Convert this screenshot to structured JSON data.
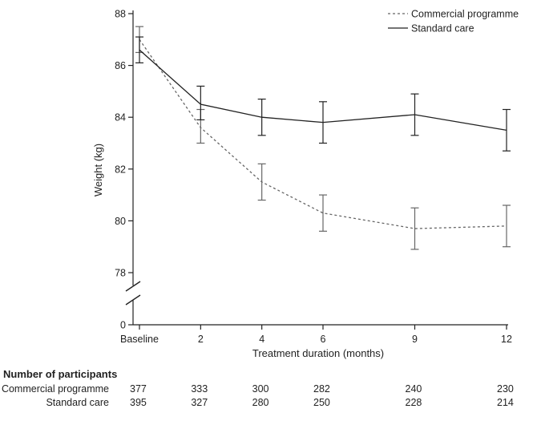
{
  "chart_data": {
    "type": "line",
    "x_categories": [
      "Baseline",
      "2",
      "4",
      "6",
      "9",
      "12"
    ],
    "x_values": [
      0,
      2,
      4,
      6,
      9,
      12
    ],
    "xlabel": "Treatment duration (months)",
    "ylabel": "Weight (kg)",
    "ylim": [
      78,
      88
    ],
    "y_ticks": [
      "0",
      "78",
      "80",
      "82",
      "84",
      "86",
      "88"
    ],
    "y_axis_break": true,
    "grid": false,
    "legend_position": "top-right",
    "series": [
      {
        "name": "Commercial programme",
        "line_style": "dashed",
        "color": "#666666",
        "values": [
          87.0,
          83.6,
          81.5,
          80.3,
          79.7,
          79.8
        ],
        "ci_low": [
          86.5,
          83.0,
          80.8,
          79.6,
          78.9,
          79.0
        ],
        "ci_high": [
          87.5,
          84.3,
          82.2,
          81.0,
          80.5,
          80.6
        ]
      },
      {
        "name": "Standard care",
        "line_style": "solid",
        "color": "#222222",
        "values": [
          86.6,
          84.5,
          84.0,
          83.8,
          84.1,
          83.5
        ],
        "ci_low": [
          86.1,
          83.9,
          83.3,
          83.0,
          83.3,
          82.7
        ],
        "ci_high": [
          87.1,
          85.2,
          84.7,
          84.6,
          84.9,
          84.3
        ]
      }
    ]
  },
  "participants": {
    "title": "Number of participants",
    "rows": [
      {
        "label": "Commercial programme",
        "counts": [
          "377",
          "333",
          "300",
          "282",
          "240",
          "230"
        ]
      },
      {
        "label": "Standard care",
        "counts": [
          "395",
          "327",
          "280",
          "250",
          "228",
          "214"
        ]
      }
    ]
  }
}
